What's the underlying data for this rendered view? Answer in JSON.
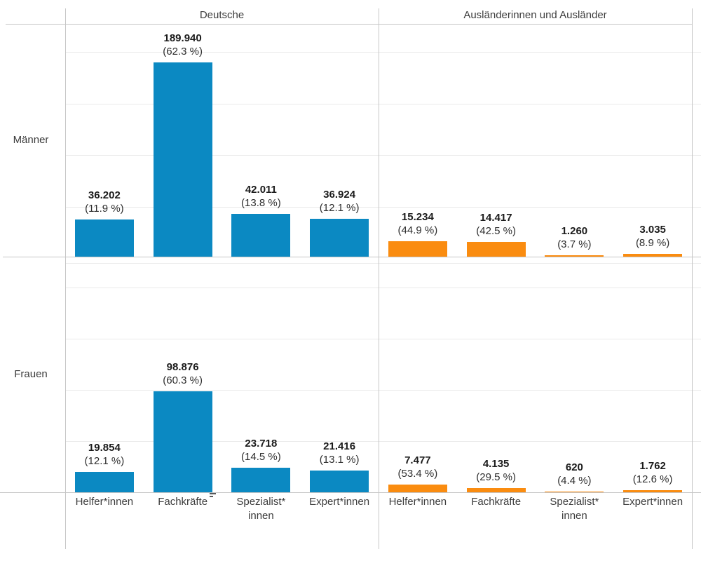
{
  "page": {
    "background": "#ffffff"
  },
  "chart_data": {
    "type": "bar",
    "layout_hint": "2x2 small multiples, rows = gender, columns = nationality, shared category x-axis, no y-axis tick labels, light horizontal gridlines",
    "column_titles": [
      "Deutsche",
      "Ausländerinnen und Ausländer"
    ],
    "row_titles": [
      "Männer",
      "Frauen"
    ],
    "categories": [
      "Helfer*innen",
      "Fachkräfte",
      "Spezialist*\ninnen",
      "Expert*innen"
    ],
    "colors": {
      "deutsche_bar": "#0b89c2",
      "auslaender_bar": "#fa8c10"
    },
    "icons": {
      "fachkraefte_sort": "sort-descending-icon"
    },
    "facets": [
      {
        "row": "Männer",
        "column": "Deutsche",
        "color": "#0b89c2",
        "values": [
          36202,
          189940,
          42011,
          36924
        ],
        "value_labels": [
          "36.202",
          "189.940",
          "42.011",
          "36.924"
        ],
        "pct_labels": [
          "(11.9 %)",
          "(62.3 %)",
          "(13.8 %)",
          "(12.1 %)"
        ]
      },
      {
        "row": "Männer",
        "column": "Ausländerinnen und Ausländer",
        "color": "#fa8c10",
        "values": [
          15234,
          14417,
          1260,
          3035
        ],
        "value_labels": [
          "15.234",
          "14.417",
          "1.260",
          "3.035"
        ],
        "pct_labels": [
          "(44.9 %)",
          "(42.5 %)",
          "(3.7 %)",
          "(8.9 %)"
        ]
      },
      {
        "row": "Frauen",
        "column": "Deutsche",
        "color": "#0b89c2",
        "values": [
          19854,
          98876,
          23718,
          21416
        ],
        "value_labels": [
          "19.854",
          "98.876",
          "23.718",
          "21.416"
        ],
        "pct_labels": [
          "(12.1 %)",
          "(60.3 %)",
          "(14.5 %)",
          "(13.1 %)"
        ]
      },
      {
        "row": "Frauen",
        "column": "Ausländerinnen und Ausländer",
        "color": "#fa8c10",
        "values": [
          7477,
          4135,
          620,
          1762
        ],
        "value_labels": [
          "7.477",
          "4.135",
          "620",
          "1.762"
        ],
        "pct_labels": [
          "(53.4 %)",
          "(29.5 %)",
          "(4.4 %)",
          "(12.6 %)"
        ]
      }
    ]
  }
}
